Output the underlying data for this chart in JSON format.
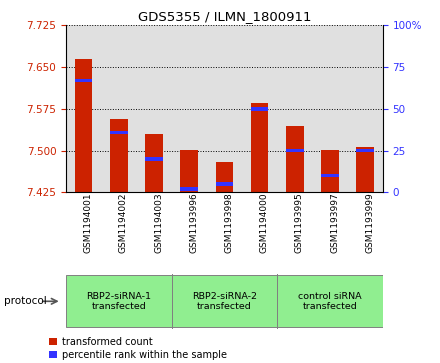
{
  "title": "GDS5355 / ILMN_1800911",
  "samples": [
    "GSM1194001",
    "GSM1194002",
    "GSM1194003",
    "GSM1193996",
    "GSM1193998",
    "GSM1194000",
    "GSM1193995",
    "GSM1193997",
    "GSM1193999"
  ],
  "red_top": [
    7.665,
    7.556,
    7.53,
    7.502,
    7.48,
    7.586,
    7.545,
    7.502,
    7.507
  ],
  "blue_pct": [
    67,
    36,
    20,
    2,
    5,
    50,
    25,
    10,
    25
  ],
  "ylim": [
    7.425,
    7.725
  ],
  "yticks": [
    7.425,
    7.5,
    7.575,
    7.65,
    7.725
  ],
  "right_yticks": [
    0,
    25,
    50,
    75,
    100
  ],
  "groups": [
    {
      "label": "RBP2-siRNA-1\ntransfected",
      "start": 0,
      "end": 3
    },
    {
      "label": "RBP2-siRNA-2\ntransfected",
      "start": 3,
      "end": 6
    },
    {
      "label": "control siRNA\ntransfected",
      "start": 6,
      "end": 9
    }
  ],
  "bar_bottom": 7.425,
  "bar_width": 0.5,
  "red_color": "#CC2200",
  "blue_color": "#3333FF",
  "left_tick_color": "#CC2200",
  "right_tick_color": "#3333FF",
  "grid_color": "#000000",
  "bar_area_color": "#E0E0E0",
  "group_color": "#90EE90",
  "protocol_label": "protocol",
  "legend_red": "transformed count",
  "legend_blue": "percentile rank within the sample",
  "blue_bar_height": 0.006
}
